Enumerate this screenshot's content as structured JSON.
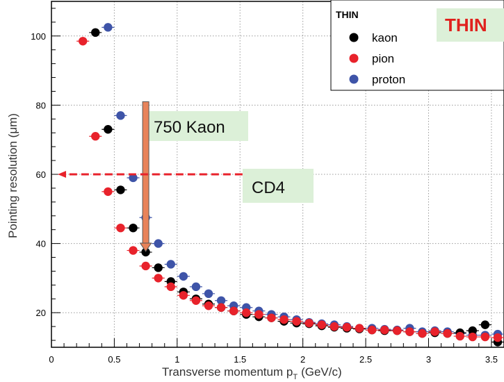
{
  "chart_data": {
    "type": "scatter",
    "xlabel_main": "Transverse momentum p",
    "xlabel_sub": "T",
    "xlabel_unit": "(GeV/c)",
    "ylabel": "Pointing resolution (μm)",
    "xlim": [
      0,
      3.6
    ],
    "ylim": [
      10,
      110
    ],
    "x_ticks": [
      0,
      0.5,
      1,
      1.5,
      2,
      2.5,
      3,
      3.5
    ],
    "x_tick_labels": [
      "0",
      "0.5",
      "1",
      "1.5",
      "2",
      "2.5",
      "3",
      "3.5"
    ],
    "y_ticks": [
      20,
      40,
      60,
      80,
      100
    ],
    "y_tick_labels": [
      "20",
      "40",
      "60",
      "80",
      "100"
    ],
    "grid": true,
    "legend": {
      "title": "THIN",
      "position": "top-right"
    },
    "series": [
      {
        "name": "kaon",
        "color": "#000000",
        "x": [
          0.35,
          0.45,
          0.55,
          0.65,
          0.75,
          0.85,
          0.95,
          1.05,
          1.15,
          1.25,
          1.35,
          1.45,
          1.55,
          1.65,
          1.75,
          1.85,
          1.95,
          2.05,
          2.15,
          2.25,
          2.35,
          2.45,
          2.55,
          2.65,
          2.75,
          2.85,
          2.95,
          3.05,
          3.15,
          3.25,
          3.35,
          3.45,
          3.55
        ],
        "y": [
          101,
          73,
          55.5,
          44.5,
          37.5,
          33,
          29,
          26,
          24,
          22.5,
          21.5,
          20.5,
          19.5,
          18.8,
          18.5,
          17.5,
          17,
          16.8,
          16.2,
          15.8,
          15.5,
          15.3,
          15,
          14.8,
          14.8,
          14.5,
          14,
          14.2,
          14,
          14.2,
          14.8,
          16.5,
          11.5
        ]
      },
      {
        "name": "pion",
        "color": "#e8222b",
        "x": [
          0.25,
          0.35,
          0.45,
          0.55,
          0.65,
          0.75,
          0.85,
          0.95,
          1.05,
          1.15,
          1.25,
          1.35,
          1.45,
          1.55,
          1.65,
          1.75,
          1.85,
          1.95,
          2.05,
          2.15,
          2.25,
          2.35,
          2.45,
          2.55,
          2.65,
          2.75,
          2.85,
          2.95,
          3.05,
          3.15,
          3.25,
          3.35,
          3.45,
          3.55
        ],
        "y": [
          98.5,
          71,
          55,
          44.5,
          38,
          33.5,
          30,
          27.5,
          25,
          23.5,
          22,
          21.5,
          20.5,
          20,
          19.5,
          18.5,
          18,
          17.5,
          17,
          16.5,
          16,
          15.8,
          15.5,
          15,
          15,
          14.8,
          14.5,
          14,
          14.5,
          14,
          13.2,
          13,
          13,
          12.8
        ]
      },
      {
        "name": "proton",
        "color": "#3e54a8",
        "x": [
          0.45,
          0.55,
          0.65,
          0.75,
          0.85,
          0.95,
          1.05,
          1.15,
          1.25,
          1.35,
          1.45,
          1.55,
          1.65,
          1.75,
          1.85,
          1.95,
          2.05,
          2.15,
          2.25,
          2.35,
          2.45,
          2.55,
          2.65,
          2.75,
          2.85,
          2.95,
          3.05,
          3.15,
          3.25,
          3.35,
          3.45,
          3.55
        ],
        "y": [
          102.5,
          77,
          59,
          47.5,
          40,
          34,
          30.5,
          27.5,
          25.5,
          23.5,
          22,
          21.5,
          20.5,
          19.5,
          18.8,
          18,
          17.2,
          16.8,
          16.5,
          16,
          15.5,
          15.5,
          15.2,
          15,
          15.5,
          14.5,
          14.8,
          14.5,
          14,
          13.5,
          13.5,
          13.8
        ]
      }
    ],
    "annotations": {
      "thin_tag": "THIN",
      "kaon_callout": "750 Kaon",
      "kaon_arrow_x": 0.75,
      "kaon_arrow_from_y": 81,
      "kaon_arrow_to_y": 37.5,
      "cd4_callout": "CD4",
      "cd4_arrow_y": 60,
      "cd4_arrow_from_x": 1.52,
      "cd4_arrow_to_x": 0.05
    }
  }
}
